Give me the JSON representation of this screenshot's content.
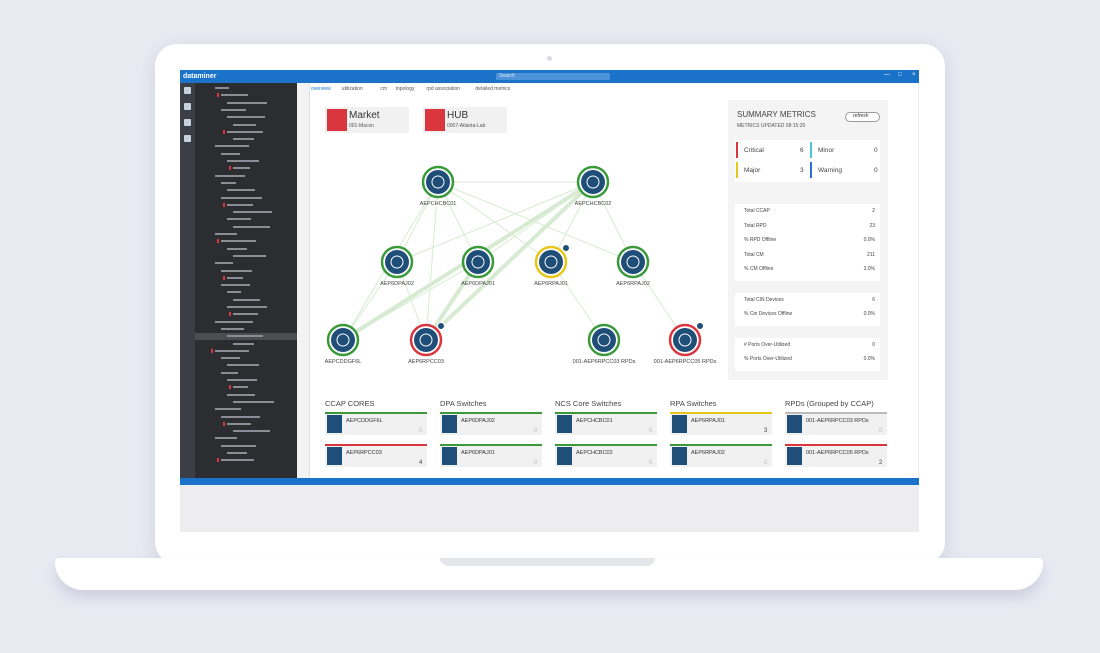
{
  "app": {
    "brand": "dataminer",
    "search": "Search"
  },
  "tabs": [
    "overview",
    "utilization",
    "cm",
    "topology",
    "rpd association",
    "detailed metrics"
  ],
  "cards": [
    {
      "title": "Market",
      "subtitle": "001-Macon"
    },
    {
      "title": "HUB",
      "subtitle": "0007-Atlanta-Lab"
    }
  ],
  "topology": {
    "nodes": [
      {
        "label": "AEPCHCBC01",
        "status": "#3a9a3a"
      },
      {
        "label": "AEPCHCBC02",
        "status": "#3a9a3a"
      },
      {
        "label": "AEP6DPAJ02",
        "status": "#3a9a3a"
      },
      {
        "label": "AEP6DPAJ01",
        "status": "#3a9a3a"
      },
      {
        "label": "AEP6RPAJ01",
        "status": "#e6c619"
      },
      {
        "label": "AEP6RPAJ02",
        "status": "#3a9a3a"
      },
      {
        "label": "AEPCDDGF6L",
        "status": "#3a9a3a"
      },
      {
        "label": "AEP6RPCC03",
        "status": "#d9363e"
      },
      {
        "label": "001-AEP6RPCC03 RPDs",
        "status": "#3a9a3a"
      },
      {
        "label": "001-AEP6RPCC05 RPDs",
        "status": "#d9363e"
      }
    ]
  },
  "summary": {
    "title": "SUMMARY METRICS",
    "updated": "METRICS UPDATED 08:15:20",
    "refresh": "refresh",
    "alarms": [
      {
        "label": "Critical",
        "value": "6",
        "color": "#d9363e"
      },
      {
        "label": "Minor",
        "value": "0",
        "color": "#4fc3d9"
      },
      {
        "label": "Major",
        "value": "3",
        "color": "#e6c619"
      },
      {
        "label": "Warning",
        "value": "0",
        "color": "#2b6fd6"
      }
    ],
    "groups": [
      [
        {
          "label": "Total CCAP",
          "value": "2"
        },
        {
          "label": "Total RPD",
          "value": "23"
        },
        {
          "label": "% RPD Offline",
          "value": "0.0%"
        },
        {
          "label": "Total CM",
          "value": "211"
        },
        {
          "label": "% CM Offline",
          "value": "3.0%"
        }
      ],
      [
        {
          "label": "Total CIN Devices",
          "value": "6"
        },
        {
          "label": "% Cin Devices Offline",
          "value": "0.0%"
        }
      ],
      [
        {
          "label": "# Ports Over-Utilized",
          "value": "0"
        },
        {
          "label": "% Ports Over-Utilized",
          "value": "0.0%"
        }
      ]
    ]
  },
  "groups": [
    {
      "title": "CCAP CORES",
      "items": [
        {
          "name": "AEPCDDGF6L",
          "count": "0",
          "color": "#3a9a3a"
        },
        {
          "name": "AEP6RPCC03",
          "count": "4",
          "color": "#d9363e"
        }
      ]
    },
    {
      "title": "DPA Switches",
      "items": [
        {
          "name": "AEP6DPAJ02",
          "count": "0",
          "color": "#3a9a3a"
        },
        {
          "name": "AEP6DPAJ01",
          "count": "0",
          "color": "#3a9a3a"
        }
      ]
    },
    {
      "title": "NCS Core Switches",
      "items": [
        {
          "name": "AEPCHCBC01",
          "count": "0",
          "color": "#3a9a3a"
        },
        {
          "name": "AEPCHCBC02",
          "count": "0",
          "color": "#3a9a3a"
        }
      ]
    },
    {
      "title": "RPA Switches",
      "items": [
        {
          "name": "AEP6RPAJ01",
          "count": "3",
          "color": "#e6c619"
        },
        {
          "name": "AEP6RPAJ02",
          "count": "0",
          "color": "#3a9a3a"
        }
      ]
    },
    {
      "title": "RPDs (Grouped by CCAP)",
      "items": [
        {
          "name": "001-AEP6RPCC03 RPDs",
          "count": "0",
          "color": "#bbbbbb"
        },
        {
          "name": "001-AEP6RPCC05 RPDs",
          "count": "2",
          "color": "#d9363e"
        }
      ]
    }
  ]
}
